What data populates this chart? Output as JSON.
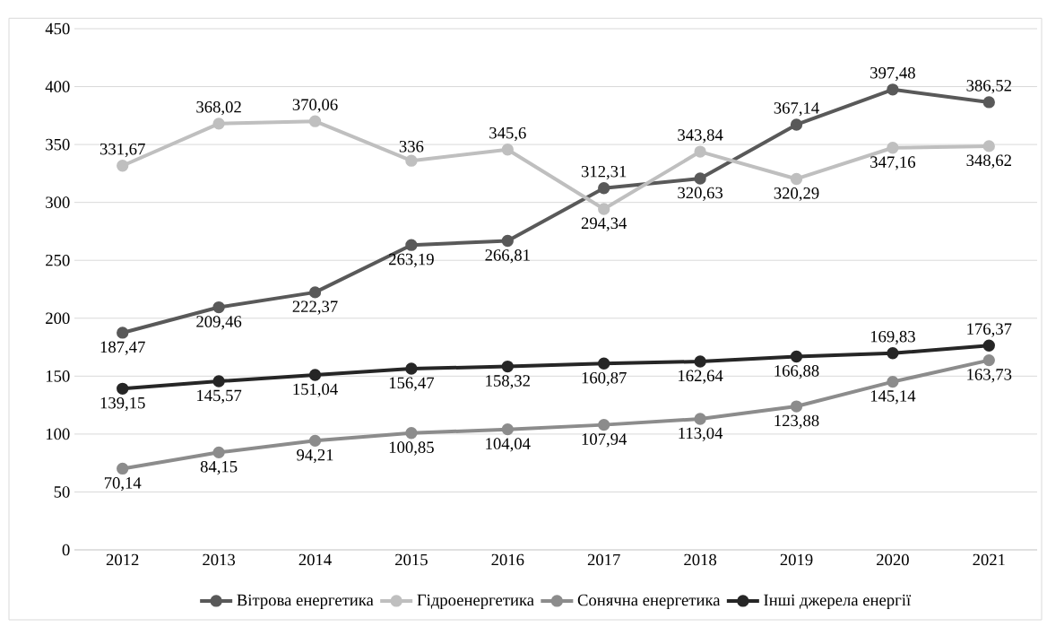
{
  "chart_data": {
    "type": "line",
    "categories": [
      "2012",
      "2013",
      "2014",
      "2015",
      "2016",
      "2017",
      "2018",
      "2019",
      "2020",
      "2021"
    ],
    "series": [
      {
        "name": "Вітрова енергетика",
        "color": "#595959",
        "values": [
          187.47,
          209.46,
          222.37,
          263.19,
          266.81,
          312.31,
          320.63,
          367.14,
          397.48,
          386.52
        ],
        "value_labels": [
          "187,47",
          "209,46",
          "222,37",
          "263,19",
          "266,81",
          "312,31",
          "320,63",
          "367,14",
          "397,48",
          "386,52"
        ]
      },
      {
        "name": "Гідроенергетика",
        "color": "#bfbfbf",
        "values": [
          331.67,
          368.02,
          370.06,
          336,
          345.6,
          294.34,
          343.84,
          320.29,
          347.16,
          348.62
        ],
        "value_labels": [
          "331,67",
          "368,02",
          "370,06",
          "336",
          "345,6",
          "294,34",
          "343,84",
          "320,29",
          "347,16",
          "348,62"
        ]
      },
      {
        "name": "Сонячна енергетика",
        "color": "#8c8c8c",
        "values": [
          70.14,
          84.15,
          94.21,
          100.85,
          104.04,
          107.94,
          113.04,
          123.88,
          145.14,
          163.73
        ],
        "value_labels": [
          "70,14",
          "84,15",
          "94,21",
          "100,85",
          "104,04",
          "107,94",
          "113,04",
          "123,88",
          "145,14",
          "163,73"
        ]
      },
      {
        "name": "Інші джерела енергії",
        "color": "#262626",
        "values": [
          139.15,
          145.57,
          151.04,
          156.47,
          158.32,
          160.87,
          162.64,
          166.88,
          169.83,
          176.37
        ],
        "value_labels": [
          "139,15",
          "145,57",
          "151,04",
          "156,47",
          "158,32",
          "160,87",
          "162,64",
          "166,88",
          "169,83",
          "176,37"
        ]
      }
    ],
    "ylim": [
      0,
      450
    ],
    "yticks": [
      0,
      50,
      100,
      150,
      200,
      250,
      300,
      350,
      400,
      450
    ],
    "grid": "y",
    "legend": "bottom",
    "marker": "circle"
  }
}
